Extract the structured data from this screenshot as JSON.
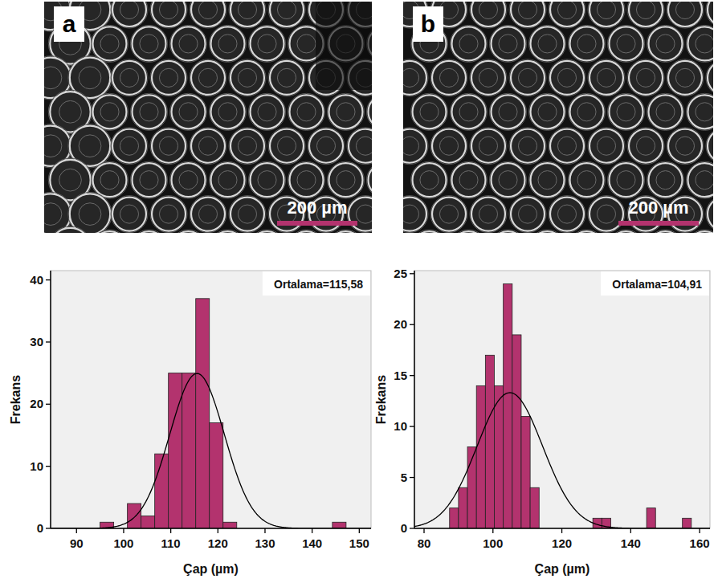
{
  "images": [
    {
      "label": "a",
      "scale_bar": "200 µm"
    },
    {
      "label": "b",
      "scale_bar": "200 µm"
    }
  ],
  "chart_data": [
    {
      "type": "histogram",
      "x_label": "Çap (µm)",
      "y_label": "Frekans",
      "annotation": "Ortalama=115,58",
      "color": "#b3336e",
      "bins": [
        95.0,
        97.9,
        100.8,
        103.7,
        106.6,
        109.5,
        112.4,
        115.3,
        118.2,
        121.1,
        124.0,
        126.9,
        129.8,
        132.7,
        135.6,
        138.5,
        141.4,
        144.3,
        147.2
      ],
      "values": [
        1,
        0,
        4,
        2,
        12,
        25,
        25,
        37,
        17,
        1,
        0,
        0,
        0,
        0,
        0,
        0,
        0,
        1
      ],
      "fit": {
        "mean": 115.58,
        "sd": 5.8
      },
      "xlim": [
        84.5,
        152.5
      ],
      "xticks": [
        90,
        100,
        110,
        120,
        130,
        140,
        150
      ],
      "ylim": [
        0,
        41.5
      ],
      "yticks": [
        0,
        10,
        20,
        30,
        40
      ]
    },
    {
      "type": "histogram",
      "x_label": "Çap (µm)",
      "y_label": "Frekans",
      "annotation": "Ortalama=104,91",
      "color": "#b3336e",
      "bins": [
        87.4,
        90.0,
        92.6,
        95.2,
        97.8,
        100.4,
        103.0,
        105.6,
        108.2,
        110.8,
        113.4,
        116.0,
        118.6,
        121.2,
        123.8,
        126.4,
        129.0,
        131.6,
        134.2,
        136.8,
        139.4,
        142.0,
        144.6,
        147.2,
        149.8,
        152.4,
        155.0,
        157.6
      ],
      "values": [
        2,
        4,
        8,
        14,
        17,
        14,
        24,
        19,
        11,
        4,
        0,
        0,
        0,
        0,
        0,
        0,
        1,
        1,
        0,
        0,
        0,
        0,
        2,
        0,
        0,
        0,
        1
      ],
      "fit": {
        "mean": 104.91,
        "sd": 9.5
      },
      "xlim": [
        77.2,
        163.0
      ],
      "xticks": [
        80,
        100,
        120,
        140,
        160
      ],
      "ylim": [
        0,
        25.3
      ],
      "yticks": [
        0,
        5,
        10,
        15,
        20,
        25
      ]
    }
  ]
}
